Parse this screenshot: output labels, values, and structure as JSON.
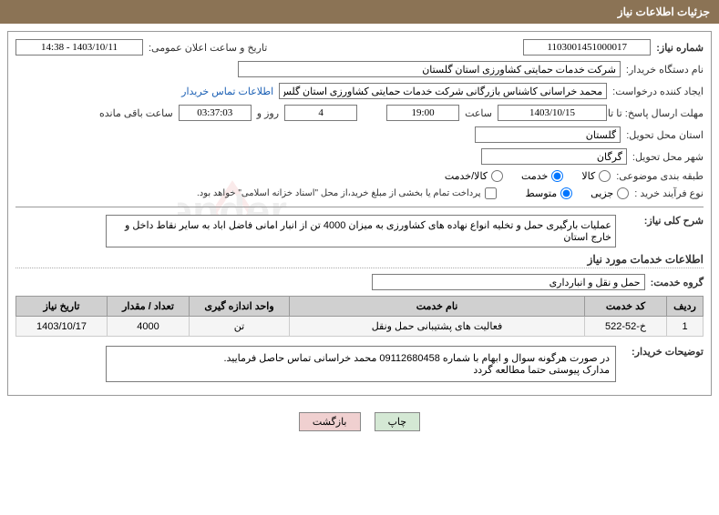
{
  "header": {
    "title": "جزئیات اطلاعات نیاز"
  },
  "form": {
    "need_number_label": "شماره نیاز:",
    "need_number": "1103001451000017",
    "announce_date_label": "تاریخ و ساعت اعلان عمومی:",
    "announce_date": "1403/10/11 - 14:38",
    "buyer_org_label": "نام دستگاه خریدار:",
    "buyer_org": "شرکت خدمات حمایتی کشاورزی استان گلستان",
    "requester_label": "ایجاد کننده درخواست:",
    "requester": "محمد خراسانی کاشناس بازرگانی شرکت خدمات حمایتی کشاورزی استان گلس",
    "contact_link": "اطلاعات تماس خریدار",
    "deadline_label": "مهلت ارسال پاسخ: تا تاریخ:",
    "deadline_date": "1403/10/15",
    "time_label": "ساعت",
    "deadline_time": "19:00",
    "days_count": "4",
    "days_label": "روز و",
    "countdown": "03:37:03",
    "remaining_label": "ساعت باقی مانده",
    "delivery_province_label": "استان محل تحویل:",
    "delivery_province": "گلستان",
    "delivery_city_label": "شهر محل تحویل:",
    "delivery_city": "گرگان",
    "subject_class_label": "طبقه بندی موضوعی:",
    "radio_goods": "کالا",
    "radio_service": "خدمت",
    "radio_goods_service": "کالا/خدمت",
    "purchase_type_label": "نوع فرآیند خرید :",
    "radio_partial": "جزیی",
    "radio_medium": "متوسط",
    "payment_note": "پرداخت تمام یا بخشی از مبلغ خرید،از محل \"اسناد خزانه اسلامی\" خواهد بود.",
    "need_desc_label": "شرح کلی نیاز:",
    "need_desc": "عملیات بارگیری حمل و تخلیه انواع نهاده های کشاورزی به میزان 4000 تن از انبار امانی فاضل اباد به سایر نقاط داخل و خارج استان",
    "services_section_title": "اطلاعات خدمات مورد نیاز",
    "service_group_label": "گروه خدمت:",
    "service_group": "حمل و نقل و انبارداری"
  },
  "table": {
    "headers": {
      "row": "ردیف",
      "service_code": "کد خدمت",
      "service_name": "نام خدمت",
      "unit": "واحد اندازه گیری",
      "qty": "تعداد / مقدار",
      "need_date": "تاریخ نیاز"
    },
    "rows": [
      {
        "row": "1",
        "service_code": "خ-52-522",
        "service_name": "فعالیت های پشتیبانی حمل ونقل",
        "unit": "تن",
        "qty": "4000",
        "need_date": "1403/10/17"
      }
    ]
  },
  "buyer_notes": {
    "label": "توضیحات خریدار:",
    "text": "در صورت هرگونه سوال و ابهام با شماره 09112680458 محمد خراسانی تماس حاصل فرمایید.\nمدارک پیوستی حتما مطالعه گردد"
  },
  "buttons": {
    "print": "چاپ",
    "back": "بازگشت"
  },
  "colors": {
    "header_bg": "#8b7355",
    "th_bg": "#d0d0d0",
    "td_bg": "#f5f5f5",
    "link": "#1a5fb4"
  }
}
